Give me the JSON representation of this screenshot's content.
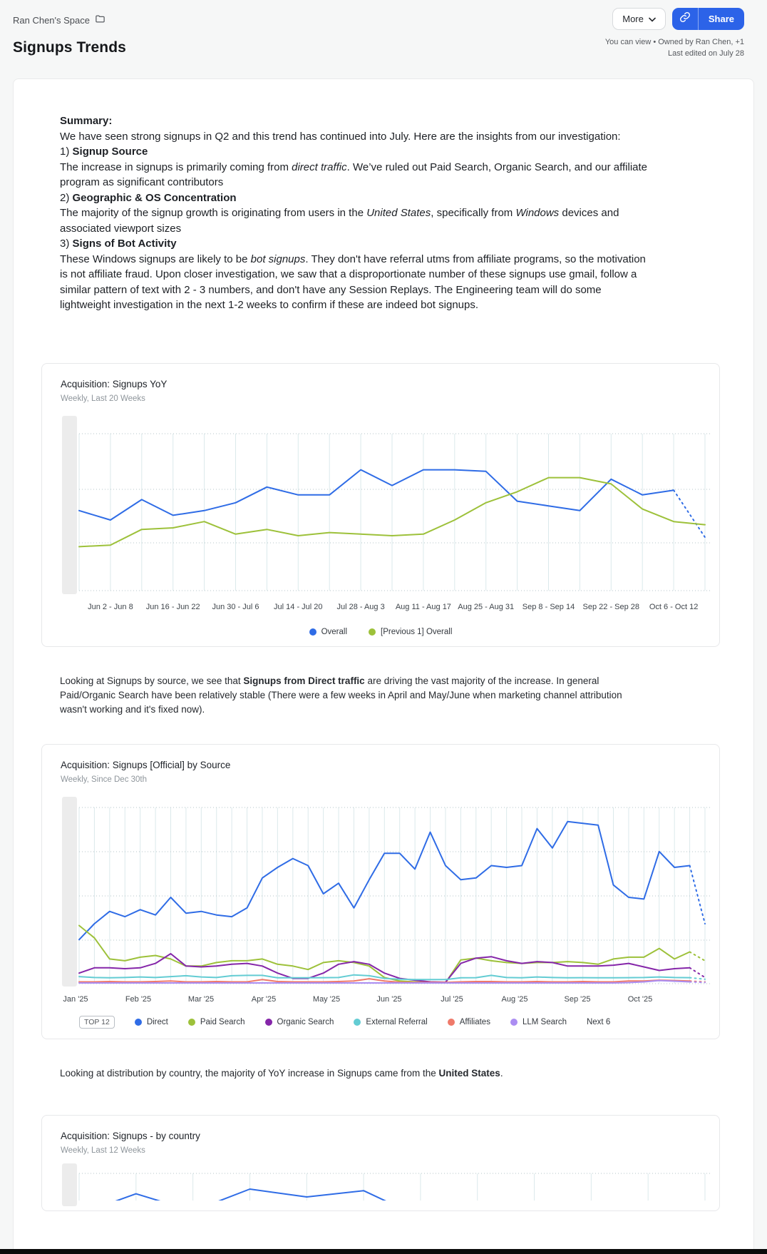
{
  "header": {
    "space_name": "Ran Chen's Space",
    "more_label": "More",
    "share_label": "Share",
    "page_title": "Signups Trends",
    "permissions": "You can view • Owned by Ran Chen, +1",
    "last_edited": "Last edited on July 28"
  },
  "summary": {
    "paragraphs": [
      [
        {
          "t": "Summary:",
          "b": true
        }
      ],
      [
        {
          "t": "We have seen strong signups in Q2 and this trend has continued into July. Here are the insights from our investigation:"
        }
      ],
      [
        {
          "t": "1) "
        },
        {
          "t": "Signup Source",
          "b": true
        }
      ],
      [
        {
          "t": "The increase in signups is primarily coming from "
        },
        {
          "t": "direct traffic",
          "i": true
        },
        {
          "t": ". We’ve ruled out Paid Search, Organic Search, and our affiliate program as significant contributors"
        }
      ],
      [
        {
          "t": "2) "
        },
        {
          "t": "Geographic & OS Concentration",
          "b": true
        }
      ],
      [
        {
          "t": "The majority of the signup growth is originating from users in the "
        },
        {
          "t": "United States",
          "i": true
        },
        {
          "t": ", specifically from "
        },
        {
          "t": "Windows",
          "i": true
        },
        {
          "t": " devices and associated viewport sizes"
        }
      ],
      [
        {
          "t": "3) "
        },
        {
          "t": "Signs of Bot Activity",
          "b": true
        }
      ],
      [
        {
          "t": "These Windows signups are likely to be "
        },
        {
          "t": "bot signups",
          "i": true
        },
        {
          "t": ". They don't have referral utms from affiliate programs, so the motivation is not affiliate fraud. Upon closer investigation, we saw that a disproportionate number of these signups use gmail, follow a similar pattern of text with 2 - 3 numbers, and don't have any Session Replays. The Engineering team will do some lightweight investigation in the next 1-2 weeks to confirm if these are indeed bot signups."
        }
      ]
    ]
  },
  "notes": [
    {
      "runs": [
        {
          "t": "Looking at Signups by source, we see that "
        },
        {
          "t": "Signups from Direct traffic",
          "b": true
        },
        {
          "t": " are driving the vast majority of the increase. In general Paid/Organic Search have been relatively stable (There were a few weeks in April and May/June when marketing channel attribution wasn't working and it's fixed now)."
        }
      ]
    },
    {
      "runs": [
        {
          "t": "Looking at distribution by country, the majority of YoY increase in Signups came from the "
        },
        {
          "t": "United States",
          "b": true
        },
        {
          "t": "."
        }
      ]
    }
  ],
  "colors": {
    "accent_blue": "#2c63e8",
    "line_blue": "#2f6ce6",
    "line_green": "#9dc13a",
    "line_purple": "#8526a9",
    "line_teal": "#63ccd3",
    "line_salmon": "#ef7a6a",
    "line_lavender": "#ab8df2"
  },
  "chart_data": [
    {
      "type": "line",
      "title": "Acquisition: Signups YoY",
      "subtitle": "Weekly, Last 20 Weeks",
      "ylim": [
        0,
        100
      ],
      "grid": true,
      "legend_position": "bottom-center",
      "x_labels": [
        "Jun 2 - Jun 8",
        "Jun 16 - Jun 22",
        "Jun 30 - Jul 6",
        "Jul 14 - Jul 20",
        "Jul 28 - Aug 3",
        "Aug 11 - Aug 17",
        "Aug 25 - Aug 31",
        "Sep 8 - Sep 14",
        "Sep 22 - Sep 28",
        "Oct 6 - Oct 12"
      ],
      "legend": [
        {
          "label": "Overall",
          "color": "#2f6ce6"
        },
        {
          "label": "[Previous 1] Overall",
          "color": "#9dc13a"
        }
      ],
      "series": [
        {
          "name": "Overall",
          "color": "#2f6ce6",
          "dashed_tail": true,
          "values": [
            51,
            45,
            58,
            48,
            51,
            56,
            66,
            61,
            61,
            77,
            67,
            77,
            77,
            76,
            57,
            54,
            51,
            71,
            61,
            64,
            34
          ]
        },
        {
          "name": "[Previous 1] Overall",
          "color": "#9dc13a",
          "dashed_tail": false,
          "values": [
            28,
            29,
            39,
            40,
            44,
            36,
            39,
            35,
            37,
            36,
            35,
            36,
            45,
            56,
            63,
            72,
            72,
            68,
            52,
            44,
            42
          ]
        }
      ]
    },
    {
      "type": "line",
      "title": "Acquisition: Signups [Official] by Source",
      "subtitle": "Weekly, Since Dec 30th",
      "ylim": [
        0,
        100
      ],
      "grid": true,
      "legend_position": "bottom-left",
      "legend_badge": "TOP 12",
      "legend_suffix": "Next 6",
      "x_labels": [
        "Jan '25",
        "Feb '25",
        "Mar '25",
        "Apr '25",
        "May '25",
        "Jun '25",
        "Jul '25",
        "Aug '25",
        "Sep '25",
        "Oct '25"
      ],
      "legend": [
        {
          "label": "Direct",
          "color": "#2f6ce6"
        },
        {
          "label": "Paid Search",
          "color": "#9dc13a"
        },
        {
          "label": "Organic Search",
          "color": "#8526a9"
        },
        {
          "label": "External Referral",
          "color": "#63ccd3"
        },
        {
          "label": "Affiliates",
          "color": "#ef7a6a"
        },
        {
          "label": "LLM Search",
          "color": "#ab8df2"
        }
      ],
      "series": [
        {
          "name": "Direct",
          "color": "#2f6ce6",
          "dashed_tail": true,
          "values": [
            25,
            34,
            41,
            38,
            42,
            39,
            49,
            40,
            41,
            39,
            38,
            43,
            60,
            66,
            71,
            67,
            51,
            57,
            43,
            59,
            74,
            74,
            65,
            86,
            67,
            59,
            60,
            67,
            66,
            67,
            88,
            77,
            92,
            91,
            90,
            56,
            49,
            48,
            75,
            66,
            67,
            34
          ]
        },
        {
          "name": "Paid Search",
          "color": "#9dc13a",
          "dashed_tail": true,
          "values": [
            33,
            26,
            14,
            13,
            15,
            16,
            14,
            10,
            10,
            12,
            13,
            13,
            14,
            11,
            10,
            8,
            12,
            13,
            12,
            10,
            3.5,
            1.5,
            1,
            0.5,
            0.5,
            13.5,
            14.5,
            13,
            12,
            11.5,
            12,
            12,
            12.5,
            12,
            11,
            14,
            15,
            15,
            20,
            14,
            18,
            13
          ]
        },
        {
          "name": "Organic Search",
          "color": "#8526a9",
          "dashed_tail": true,
          "values": [
            6,
            9,
            9,
            8.5,
            9,
            11.5,
            17,
            10,
            9.5,
            10,
            11,
            11.5,
            10,
            6,
            3,
            3,
            6,
            11,
            12.5,
            11,
            6,
            3,
            2,
            1,
            0.8,
            11.5,
            14.5,
            15.3,
            13,
            11.5,
            12.5,
            12,
            10,
            10,
            10,
            10.5,
            11.5,
            9.5,
            7.5,
            8.5,
            9,
            3.5
          ]
        },
        {
          "name": "External Referral",
          "color": "#63ccd3",
          "dashed_tail": true,
          "values": [
            4,
            3.5,
            3.3,
            3.5,
            3.8,
            3.5,
            4,
            4.5,
            3.8,
            3.5,
            4.5,
            4.7,
            4.7,
            3.3,
            3.3,
            3.3,
            3.4,
            3.5,
            5,
            4.5,
            3,
            2.5,
            2.3,
            2.3,
            2.3,
            3.3,
            3.4,
            4.7,
            3.5,
            3.3,
            3.8,
            3.5,
            3.3,
            3.4,
            3.3,
            3.3,
            3.4,
            3.5,
            3.8,
            3.5,
            3.4,
            2.5
          ]
        },
        {
          "name": "Affiliates",
          "color": "#ef7a6a",
          "dashed_tail": true,
          "values": [
            1,
            1,
            1.2,
            1,
            1,
            1.2,
            1.5,
            1,
            1,
            1.2,
            1,
            1,
            2.3,
            1.2,
            1,
            1,
            1,
            1.2,
            1.5,
            2.8,
            1.5,
            0.8,
            0.7,
            0.7,
            0.7,
            1,
            1.2,
            1.2,
            1,
            1,
            1.2,
            1,
            1,
            1.2,
            1,
            1,
            1.5,
            1.5,
            2,
            1.8,
            1.5,
            1
          ]
        },
        {
          "name": "LLM Search",
          "color": "#ab8df2",
          "dashed_tail": true,
          "values": [
            0.4,
            0.4,
            0.4,
            0.4,
            0.4,
            0.4,
            0.4,
            0.4,
            0.4,
            0.4,
            0.4,
            0.4,
            0.4,
            0.4,
            0.4,
            0.4,
            0.4,
            0.4,
            0.4,
            0.4,
            0.4,
            0.4,
            0.4,
            0.4,
            0.4,
            0.4,
            0.4,
            0.4,
            0.4,
            0.4,
            0.4,
            0.4,
            0.4,
            0.4,
            0.4,
            0.4,
            0.6,
            1,
            1.8,
            1.4,
            1,
            0.7
          ]
        }
      ]
    },
    {
      "type": "line",
      "title": "Acquisition: Signups  - by country",
      "subtitle": "Weekly, Last 12 Weeks",
      "ylim": [
        0,
        100
      ],
      "grid": true,
      "clipped": true,
      "x_labels": [],
      "legend": [],
      "series": [
        {
          "name": "",
          "color": "#2f6ce6",
          "dashed_tail": false,
          "values": [
            74,
            87,
            76,
            90,
            85,
            89,
            72,
            68,
            70,
            69,
            70,
            69
          ]
        }
      ]
    }
  ]
}
